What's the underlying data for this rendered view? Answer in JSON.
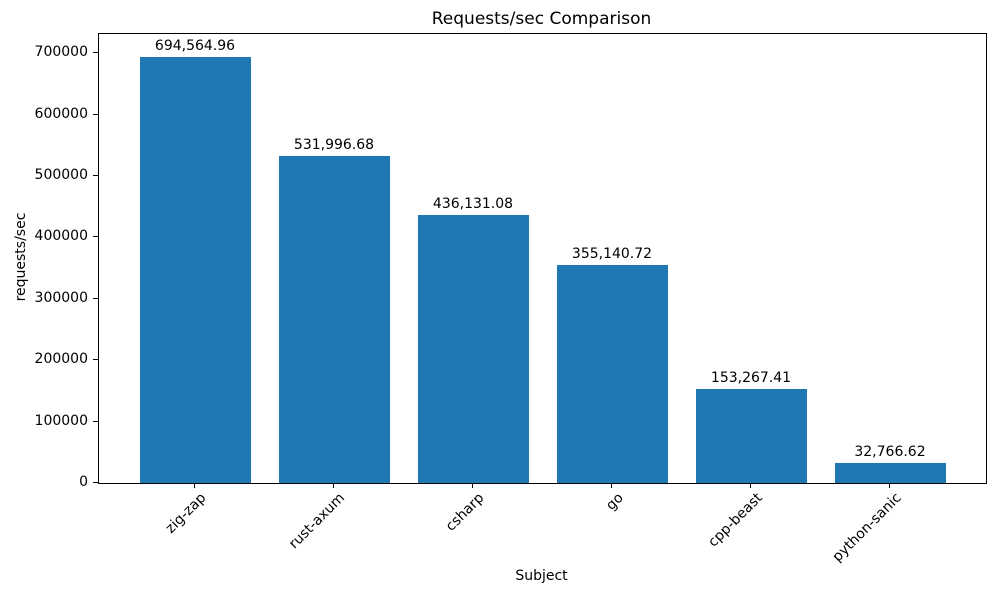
{
  "chart_data": {
    "type": "bar",
    "title": "Requests/sec Comparison",
    "xlabel": "Subject",
    "ylabel": "requests/sec",
    "categories": [
      "zig-zap",
      "rust-axum",
      "csharp",
      "go",
      "cpp-beast",
      "python-sanic"
    ],
    "values": [
      694564.96,
      531996.68,
      436131.08,
      355140.72,
      153267.41,
      32766.62
    ],
    "value_labels": [
      "694,564.96",
      "531,996.68",
      "436,131.08",
      "355,140.72",
      "153,267.41",
      "32,766.62"
    ],
    "yticks": [
      0,
      100000,
      200000,
      300000,
      400000,
      500000,
      600000,
      700000
    ],
    "ytick_labels": [
      "0",
      "100000",
      "200000",
      "300000",
      "400000",
      "500000",
      "600000",
      "700000"
    ],
    "ylim": [
      0,
      731300
    ],
    "bar_color": "#1f77b4",
    "text_color": "#000000",
    "grid": false,
    "legend": null,
    "x_tick_rotation_deg": 45
  }
}
